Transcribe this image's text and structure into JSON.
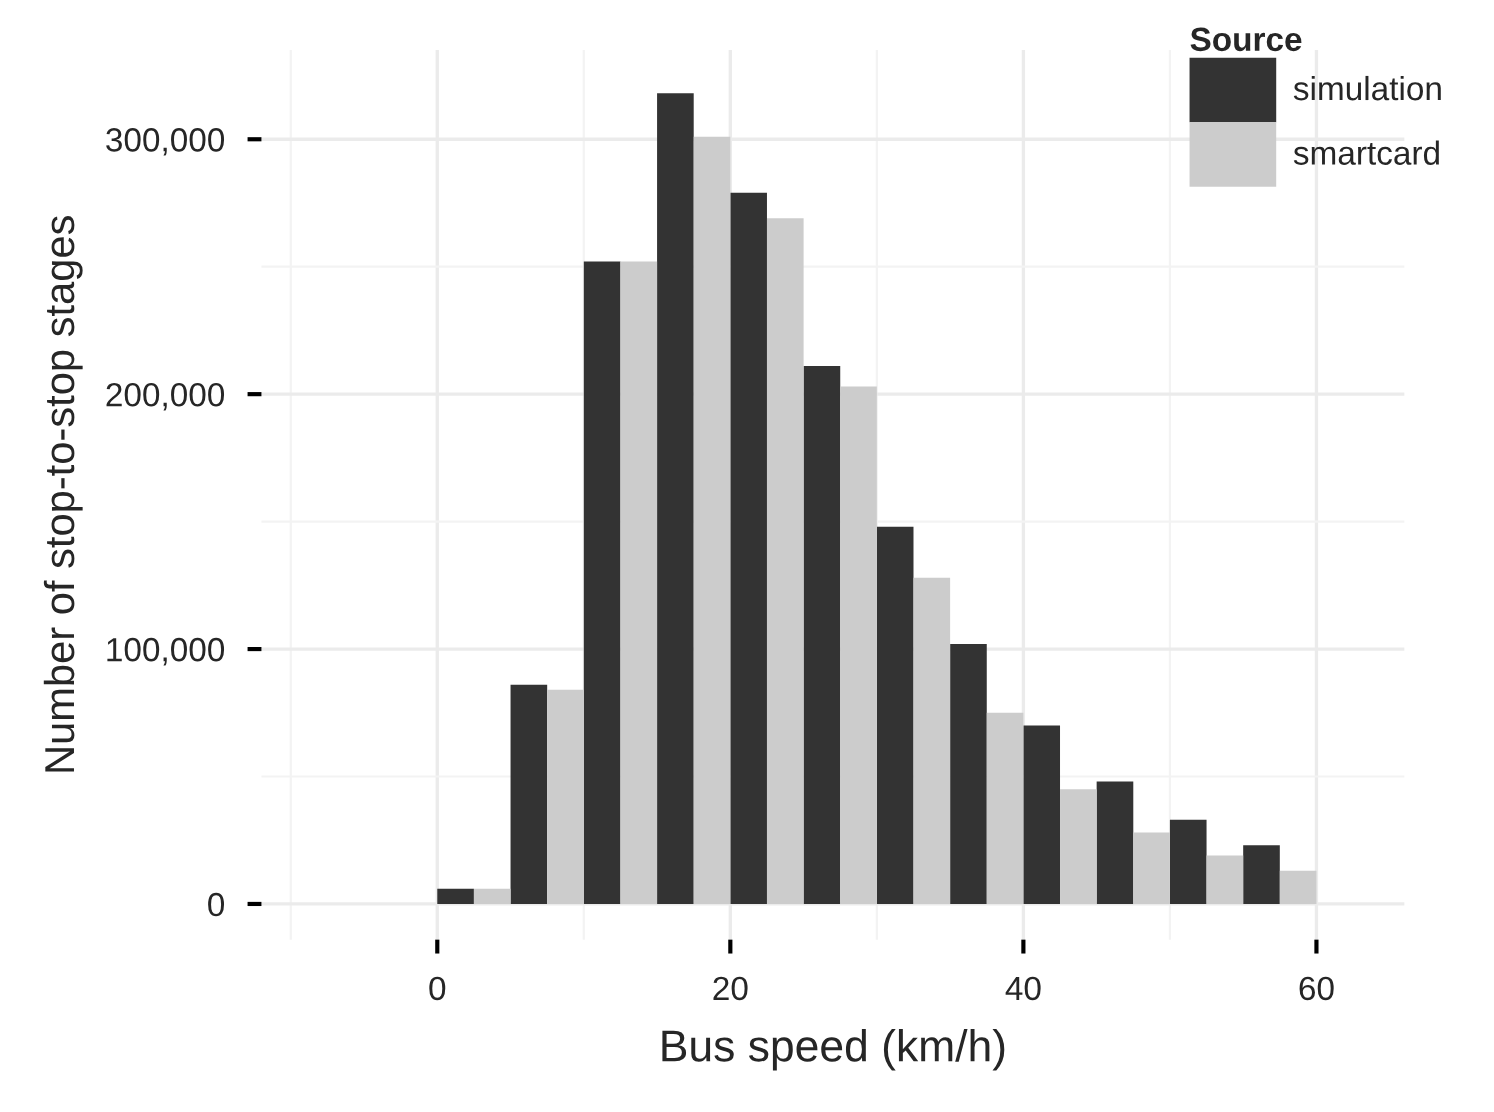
{
  "chart_data": {
    "type": "histogram",
    "xlabel": "Bus speed (km/h)",
    "ylabel": "Number of stop-to-stop stages",
    "legend_title": "Source",
    "bins": [
      0,
      5,
      10,
      15,
      20,
      25,
      30,
      35,
      40,
      45,
      50,
      55,
      60
    ],
    "series": [
      {
        "name": "simulation",
        "color": "#333333",
        "values": [
          6000,
          86000,
          252000,
          318000,
          279000,
          211000,
          148000,
          102000,
          70000,
          48000,
          33000,
          23000
        ]
      },
      {
        "name": "smartcard",
        "color": "#cccccc",
        "values": [
          6000,
          84000,
          252000,
          301000,
          269000,
          203000,
          128000,
          75000,
          45000,
          28000,
          19000,
          13000
        ]
      }
    ],
    "xlim": [
      -12,
      66
    ],
    "xticks": [
      0,
      20,
      40,
      60
    ],
    "ylim": [
      -14000,
      335000
    ],
    "yticks": [
      {
        "value": 0,
        "label": "0"
      },
      {
        "value": 100000,
        "label": "100,000"
      },
      {
        "value": 200000,
        "label": "200,000"
      },
      {
        "value": 300000,
        "label": "300,000"
      }
    ],
    "grid": true,
    "legend": "top right"
  }
}
